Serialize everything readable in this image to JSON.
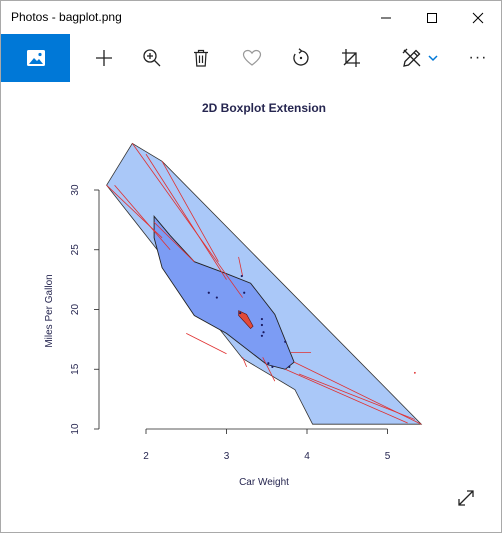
{
  "window": {
    "title": "Photos - bagplot.png",
    "controls": [
      "minimize",
      "maximize",
      "close"
    ]
  },
  "toolbar": {
    "items": [
      {
        "name": "image-view-icon",
        "active": true
      },
      {
        "name": "add-icon"
      },
      {
        "name": "zoom-in-icon"
      },
      {
        "name": "delete-icon"
      },
      {
        "name": "favorite-icon"
      },
      {
        "name": "rotate-icon"
      },
      {
        "name": "crop-icon"
      },
      {
        "name": "edit-draw-icon"
      },
      {
        "name": "chevron-down-icon"
      },
      {
        "name": "more-icon"
      }
    ],
    "more_label": "···"
  },
  "colors": {
    "accent": "#0078d7",
    "fence": "#aac8f8",
    "bag": "#7c9cf4",
    "loop": "#a6c4f8",
    "center": "#e24a3a",
    "red_lines": "#e03030",
    "title_text": "#262650"
  },
  "chart_data": {
    "type": "scatter",
    "subtype": "bagplot",
    "title": "2D Boxplot Extension",
    "xlabel": "Car Weight",
    "ylabel": "Miles Per Gallon",
    "xlim": [
      1.3,
      5.5
    ],
    "ylim": [
      10,
      34
    ],
    "xticks": [
      2,
      3,
      4,
      5
    ],
    "yticks": [
      10,
      15,
      20,
      25,
      30
    ],
    "loop": [
      [
        1.51,
        30.4
      ],
      [
        1.83,
        33.9
      ],
      [
        2.2,
        32.4
      ],
      [
        5.42,
        10.4
      ],
      [
        4.07,
        10.4
      ],
      [
        3.85,
        13.3
      ],
      [
        3.2,
        15.9
      ]
    ],
    "bag": [
      [
        2.1,
        27.8
      ],
      [
        2.3,
        26.2
      ],
      [
        2.6,
        24.0
      ],
      [
        3.0,
        23.0
      ],
      [
        3.3,
        22.2
      ],
      [
        3.6,
        19.6
      ],
      [
        3.84,
        15.6
      ],
      [
        3.73,
        15.0
      ],
      [
        3.5,
        15.4
      ],
      [
        3.0,
        18.0
      ],
      [
        2.6,
        19.5
      ],
      [
        2.2,
        23.5
      ],
      [
        2.1,
        26.0
      ]
    ],
    "center_region": [
      [
        3.15,
        19.9
      ],
      [
        3.25,
        19.6
      ],
      [
        3.33,
        18.6
      ],
      [
        3.3,
        18.4
      ],
      [
        3.15,
        19.5
      ]
    ],
    "points": [
      {
        "x": 3.19,
        "y": 22.8
      },
      {
        "x": 3.22,
        "y": 21.4
      },
      {
        "x": 2.78,
        "y": 21.4
      },
      {
        "x": 2.88,
        "y": 21.0
      },
      {
        "x": 3.44,
        "y": 18.7
      },
      {
        "x": 3.44,
        "y": 19.2
      },
      {
        "x": 3.46,
        "y": 18.1
      },
      {
        "x": 3.57,
        "y": 15.2
      },
      {
        "x": 3.52,
        "y": 15.5
      },
      {
        "x": 3.73,
        "y": 17.3
      },
      {
        "x": 3.78,
        "y": 15.2
      },
      {
        "x": 3.17,
        "y": 19.7
      },
      {
        "x": 3.44,
        "y": 17.8
      },
      {
        "x": 5.34,
        "y": 14.7
      }
    ],
    "red_segments": [
      [
        [
          1.51,
          30.4
        ],
        [
          2.2,
          26.0
        ]
      ],
      [
        [
          1.61,
          30.4
        ],
        [
          2.3,
          25.0
        ]
      ],
      [
        [
          1.83,
          33.9
        ],
        [
          3.2,
          21.0
        ]
      ],
      [
        [
          2.0,
          33.0
        ],
        [
          3.0,
          22.5
        ]
      ],
      [
        [
          2.2,
          32.4
        ],
        [
          2.9,
          24.0
        ]
      ],
      [
        [
          2.1,
          27.3
        ],
        [
          2.6,
          24.0
        ]
      ],
      [
        [
          2.5,
          18.0
        ],
        [
          3.0,
          16.3
        ]
      ],
      [
        [
          3.15,
          24.4
        ],
        [
          3.2,
          22.8
        ]
      ],
      [
        [
          3.2,
          16.0
        ],
        [
          3.25,
          15.2
        ]
      ],
      [
        [
          3.45,
          16.0
        ],
        [
          3.6,
          14.0
        ]
      ],
      [
        [
          3.8,
          16.4
        ],
        [
          4.05,
          16.4
        ]
      ],
      [
        [
          3.84,
          15.6
        ],
        [
          5.42,
          10.4
        ]
      ],
      [
        [
          3.73,
          15.0
        ],
        [
          5.25,
          10.5
        ]
      ],
      [
        [
          3.9,
          14.6
        ],
        [
          5.34,
          10.8
        ]
      ]
    ]
  }
}
